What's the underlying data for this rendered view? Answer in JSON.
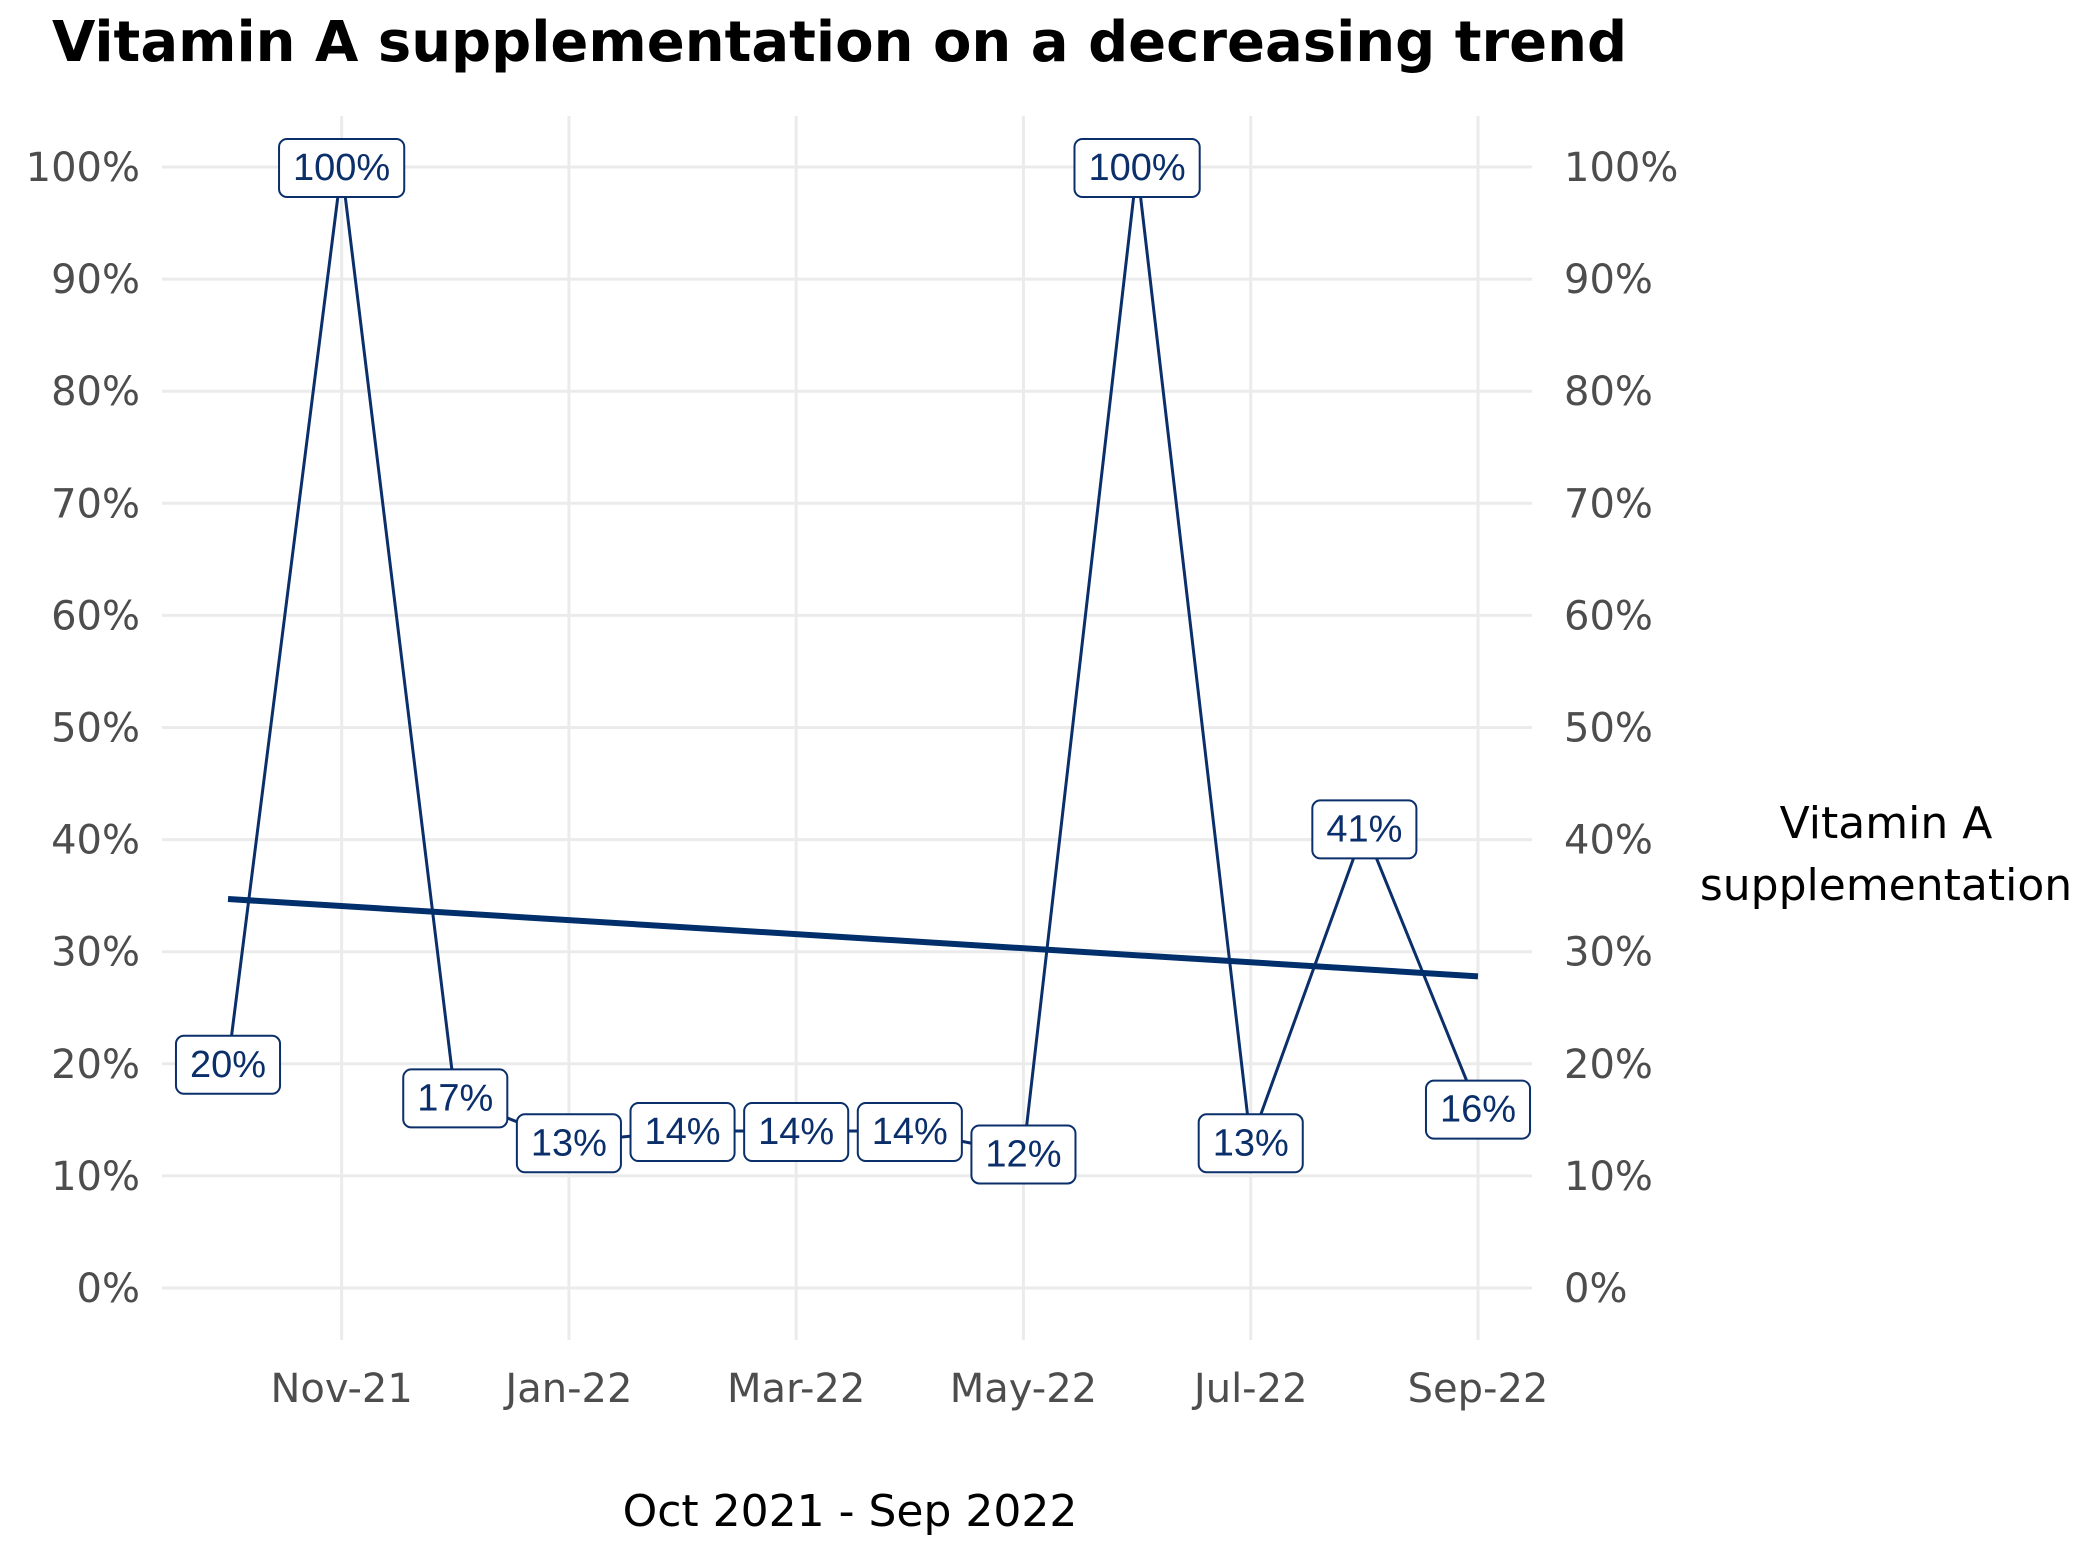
{
  "chart_data": {
    "type": "line",
    "title": "Vitamin A supplementation on a decreasing trend",
    "xlabel": "Oct 2021 - Sep 2022",
    "ylabel": "",
    "secondary_ylabel": [
      "Vitamin A",
      "supplementation"
    ],
    "x": [
      "Oct-21",
      "Nov-21",
      "Dec-21",
      "Jan-22",
      "Feb-22",
      "Mar-22",
      "Apr-22",
      "May-22",
      "Jun-22",
      "Jul-22",
      "Aug-22",
      "Sep-22"
    ],
    "x_ticks": [
      "Nov-21",
      "Jan-22",
      "Mar-22",
      "May-22",
      "Jul-22",
      "Sep-22"
    ],
    "series": [
      {
        "values": [
          20,
          100,
          17,
          13,
          14,
          14,
          14,
          12,
          100,
          13,
          41,
          16
        ],
        "labels": [
          "20%",
          "100%",
          "17%",
          "13%",
          "14%",
          "14%",
          "14%",
          "12%",
          "100%",
          "13%",
          "41%",
          "16%"
        ]
      }
    ],
    "trend": {
      "start": 34.7,
      "end": 27.8
    },
    "ylim": [
      0,
      100
    ],
    "y_ticks": [
      "0%",
      "10%",
      "20%",
      "30%",
      "40%",
      "50%",
      "60%",
      "70%",
      "80%",
      "90%",
      "100%"
    ],
    "secondary_y_ticks": [
      "0%",
      "10%",
      "20%",
      "30%",
      "40%",
      "50%",
      "60%",
      "70%",
      "80%",
      "90%",
      "100%"
    ],
    "grid": true,
    "legend": "none",
    "colors": {
      "series": "#0b2f6b",
      "trend": "#002f6c",
      "grid": "#ebebeb",
      "tick_text": "#4d4d4d"
    }
  }
}
